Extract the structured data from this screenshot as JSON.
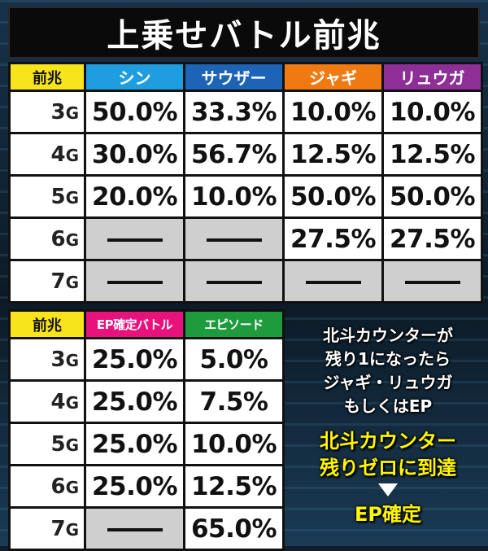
{
  "title": "上乗せバトル前兆",
  "table1": {
    "label": "前兆",
    "headers": [
      {
        "label": "シン",
        "color": "#1e9ee0"
      },
      {
        "label": "サウザー",
        "color": "#1d64b6"
      },
      {
        "label": "ジャギ",
        "color": "#f07a12"
      },
      {
        "label": "リュウガ",
        "color": "#8e2f98"
      }
    ],
    "rows": [
      {
        "num": "3",
        "unit": "G",
        "values": [
          "50.0%",
          "33.3%",
          "10.0%",
          "10.0%"
        ]
      },
      {
        "num": "4",
        "unit": "G",
        "values": [
          "30.0%",
          "56.7%",
          "12.5%",
          "12.5%"
        ]
      },
      {
        "num": "5",
        "unit": "G",
        "values": [
          "20.0%",
          "10.0%",
          "50.0%",
          "50.0%"
        ]
      },
      {
        "num": "6",
        "unit": "G",
        "values": [
          "",
          "",
          "27.5%",
          "27.5%"
        ]
      },
      {
        "num": "7",
        "unit": "G",
        "values": [
          "",
          "",
          "",
          ""
        ]
      }
    ]
  },
  "table2": {
    "label": "前兆",
    "headers": [
      {
        "label": "EP確定バトル",
        "color": "#e8127c"
      },
      {
        "label": "エピソード",
        "color": "#1e9b3c"
      }
    ],
    "rows": [
      {
        "num": "3",
        "unit": "G",
        "values": [
          "25.0%",
          "5.0%"
        ]
      },
      {
        "num": "4",
        "unit": "G",
        "values": [
          "25.0%",
          "7.5%"
        ]
      },
      {
        "num": "5",
        "unit": "G",
        "values": [
          "25.0%",
          "10.0%"
        ]
      },
      {
        "num": "6",
        "unit": "G",
        "values": [
          "25.0%",
          "12.5%"
        ]
      },
      {
        "num": "7",
        "unit": "G",
        "values": [
          "",
          "65.0%"
        ]
      }
    ]
  },
  "note": {
    "lines": [
      "北斗カウンターが",
      "残り1になったら",
      "ジャギ・リュウガ",
      "もしくはEP"
    ],
    "highlight": [
      "北斗カウンター",
      "残りゼロに到達"
    ],
    "result": "EP確定"
  }
}
